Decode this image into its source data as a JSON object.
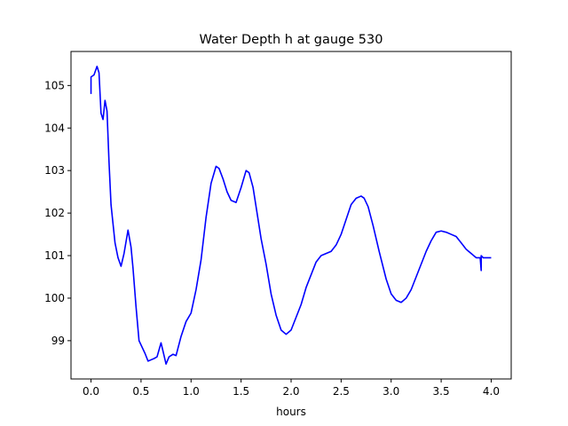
{
  "chart_data": {
    "type": "line",
    "title": "Water Depth h at gauge 530",
    "xlabel": "hours",
    "ylabel": "",
    "xlim": [
      -0.2,
      4.2
    ],
    "ylim": [
      98.1,
      105.8
    ],
    "xticks": [
      0.0,
      0.5,
      1.0,
      1.5,
      2.0,
      2.5,
      3.0,
      3.5,
      4.0
    ],
    "xtick_labels": [
      "0.0",
      "0.5",
      "1.0",
      "1.5",
      "2.0",
      "2.5",
      "3.0",
      "3.5",
      "4.0"
    ],
    "yticks": [
      99,
      100,
      101,
      102,
      103,
      104,
      105
    ],
    "ytick_labels": [
      "99",
      "100",
      "101",
      "102",
      "103",
      "104",
      "105"
    ],
    "grid": false,
    "color": "#0000ff",
    "x": [
      0.0,
      0.0,
      0.03,
      0.06,
      0.08,
      0.1,
      0.12,
      0.14,
      0.16,
      0.18,
      0.2,
      0.24,
      0.27,
      0.3,
      0.33,
      0.37,
      0.4,
      0.42,
      0.45,
      0.48,
      0.51,
      0.54,
      0.57,
      0.6,
      0.63,
      0.66,
      0.7,
      0.72,
      0.75,
      0.78,
      0.82,
      0.85,
      0.9,
      0.95,
      1.0,
      1.05,
      1.1,
      1.15,
      1.2,
      1.25,
      1.28,
      1.32,
      1.36,
      1.4,
      1.45,
      1.5,
      1.55,
      1.58,
      1.62,
      1.66,
      1.7,
      1.75,
      1.8,
      1.85,
      1.9,
      1.95,
      2.0,
      2.05,
      2.1,
      2.15,
      2.2,
      2.25,
      2.3,
      2.35,
      2.4,
      2.45,
      2.5,
      2.55,
      2.6,
      2.65,
      2.7,
      2.73,
      2.77,
      2.82,
      2.88,
      2.95,
      3.0,
      3.05,
      3.1,
      3.15,
      3.2,
      3.25,
      3.3,
      3.35,
      3.4,
      3.45,
      3.5,
      3.55,
      3.6,
      3.65,
      3.7,
      3.75,
      3.8,
      3.85,
      3.89,
      3.9,
      3.9,
      3.92,
      3.95,
      4.0
    ],
    "y": [
      104.8,
      105.2,
      105.25,
      105.45,
      105.3,
      104.35,
      104.2,
      104.65,
      104.4,
      103.2,
      102.2,
      101.3,
      100.95,
      100.75,
      101.05,
      101.6,
      101.2,
      100.7,
      99.8,
      99.0,
      98.85,
      98.7,
      98.52,
      98.55,
      98.58,
      98.62,
      98.95,
      98.75,
      98.45,
      98.62,
      98.68,
      98.65,
      99.1,
      99.45,
      99.65,
      100.2,
      100.9,
      101.9,
      102.7,
      103.1,
      103.05,
      102.8,
      102.5,
      102.3,
      102.25,
      102.6,
      103.0,
      102.95,
      102.6,
      102.0,
      101.4,
      100.8,
      100.1,
      99.6,
      99.25,
      99.15,
      99.25,
      99.55,
      99.85,
      100.25,
      100.55,
      100.85,
      101.0,
      101.05,
      101.1,
      101.25,
      101.5,
      101.85,
      102.2,
      102.35,
      102.4,
      102.35,
      102.15,
      101.7,
      101.1,
      100.45,
      100.1,
      99.95,
      99.9,
      100.0,
      100.2,
      100.5,
      100.8,
      101.1,
      101.35,
      101.55,
      101.58,
      101.55,
      101.5,
      101.45,
      101.3,
      101.15,
      101.05,
      100.95,
      100.95,
      100.65,
      101.0,
      100.95,
      100.95,
      100.95
    ]
  }
}
